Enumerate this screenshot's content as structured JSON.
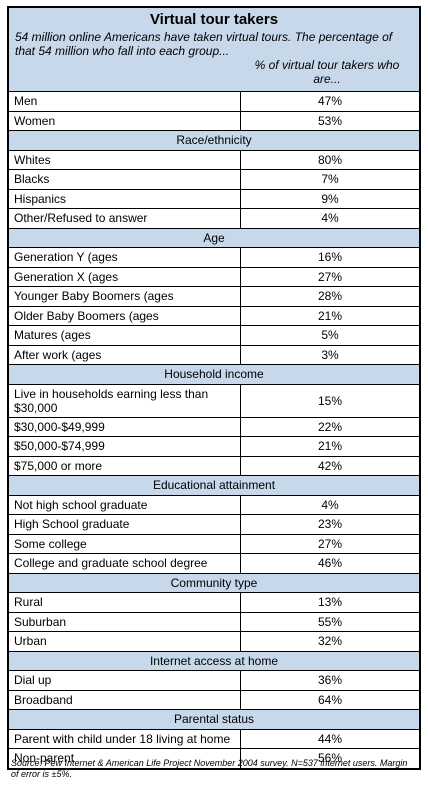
{
  "title": "Virtual tour takers",
  "intro": "54 million online Americans have taken virtual tours. The percentage of that 54 million who fall into each group...",
  "column_header": "% of virtual tour takers who are...",
  "rows": [
    {
      "type": "data",
      "label": "Men",
      "value": "47%"
    },
    {
      "type": "data",
      "label": "Women",
      "value": "53%"
    },
    {
      "type": "section",
      "label": "Race/ethnicity"
    },
    {
      "type": "data",
      "label": "Whites",
      "value": "80%"
    },
    {
      "type": "data",
      "label": "Blacks",
      "value": "7%"
    },
    {
      "type": "data",
      "label": "Hispanics",
      "value": "9%"
    },
    {
      "type": "data",
      "label": "Other/Refused to answer",
      "value": "4%"
    },
    {
      "type": "section",
      "label": "Age"
    },
    {
      "type": "data",
      "label": "Generation Y (ages",
      "value": "16%"
    },
    {
      "type": "data",
      "label": "Generation X (ages",
      "value": "27%"
    },
    {
      "type": "data",
      "label": "Younger Baby Boomers (ages",
      "value": "28%"
    },
    {
      "type": "data",
      "label": "Older Baby Boomers (ages",
      "value": "21%"
    },
    {
      "type": "data",
      "label": "Matures (ages",
      "value": "5%"
    },
    {
      "type": "data",
      "label": "After work (ages",
      "value": "3%"
    },
    {
      "type": "section",
      "label": "Household income"
    },
    {
      "type": "data",
      "label": "Live in households earning less than $30,000",
      "value": "15%"
    },
    {
      "type": "data",
      "label": "$30,000-$49,999",
      "value": "22%"
    },
    {
      "type": "data",
      "label": "$50,000-$74,999",
      "value": "21%"
    },
    {
      "type": "data",
      "label": "$75,000 or more",
      "value": "42%"
    },
    {
      "type": "section",
      "label": "Educational attainment"
    },
    {
      "type": "data",
      "label": "Not high school graduate",
      "value": "4%"
    },
    {
      "type": "data",
      "label": "High School graduate",
      "value": "23%"
    },
    {
      "type": "data",
      "label": "Some college",
      "value": "27%"
    },
    {
      "type": "data",
      "label": "College and graduate school degree",
      "value": "46%"
    },
    {
      "type": "section",
      "label": "Community type"
    },
    {
      "type": "data",
      "label": "Rural",
      "value": "13%"
    },
    {
      "type": "data",
      "label": "Suburban",
      "value": "55%"
    },
    {
      "type": "data",
      "label": "Urban",
      "value": "32%"
    },
    {
      "type": "section",
      "label": "Internet access at home"
    },
    {
      "type": "data",
      "label": "Dial up",
      "value": "36%"
    },
    {
      "type": "data",
      "label": "Broadband",
      "value": "64%"
    },
    {
      "type": "section",
      "label": "Parental status"
    },
    {
      "type": "data",
      "label": "Parent with child under 18 living at home",
      "value": "44%"
    },
    {
      "type": "data",
      "label": "Non-parent",
      "value": "56%"
    }
  ],
  "source": "Source:  Pew Internet & American Life Project November 2004 survey. N=537 internet users.  Margin of error is ±5%.",
  "colors": {
    "header_fill": "#c7d8ea",
    "border": "#000000"
  }
}
